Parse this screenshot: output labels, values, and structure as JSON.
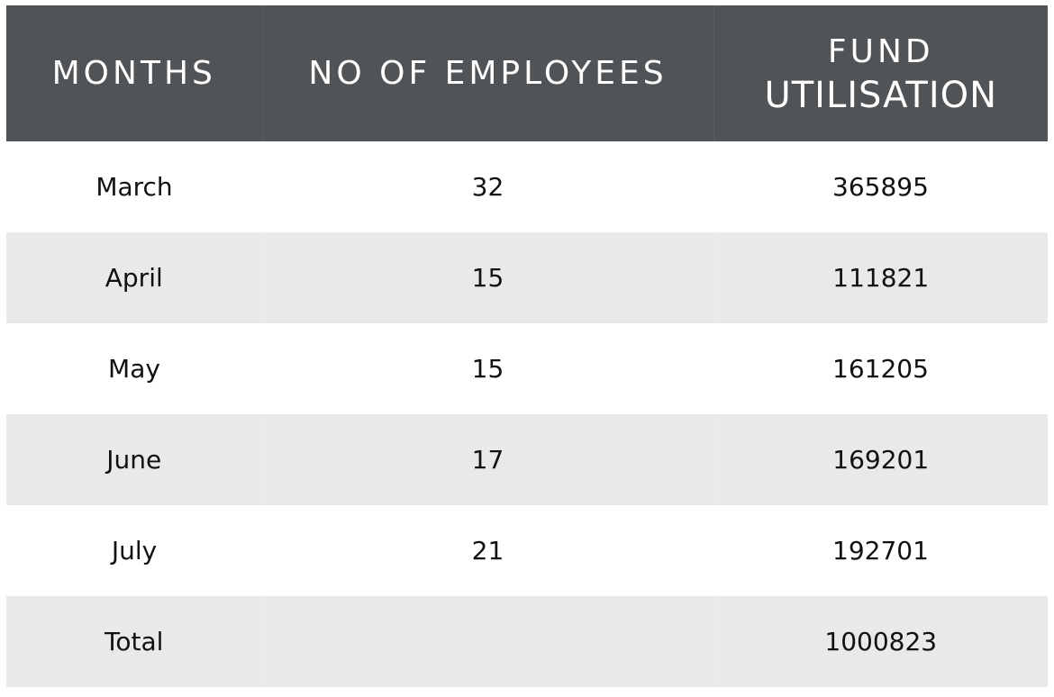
{
  "chart_data": {
    "type": "table",
    "columns": [
      "MONTHS",
      "NO OF EMPLOYEES",
      "FUND UTILISATION"
    ],
    "fund_header_lines": [
      "FUND",
      "UTILISATION"
    ],
    "rows": [
      {
        "month": "March",
        "employees": "32",
        "fund": "365895"
      },
      {
        "month": "April",
        "employees": "15",
        "fund": "111821"
      },
      {
        "month": "May",
        "employees": "15",
        "fund": "161205"
      },
      {
        "month": "June",
        "employees": "17",
        "fund": "169201"
      },
      {
        "month": "July",
        "employees": "21",
        "fund": "192701"
      },
      {
        "month": "Total",
        "employees": "",
        "fund": "1000823"
      }
    ],
    "colors": {
      "header_bg": "#515457",
      "header_text": "#ffffff",
      "stripe_bg": "#e9e9e9",
      "row_bg": "#ffffff",
      "cell_text": "#111111"
    }
  }
}
